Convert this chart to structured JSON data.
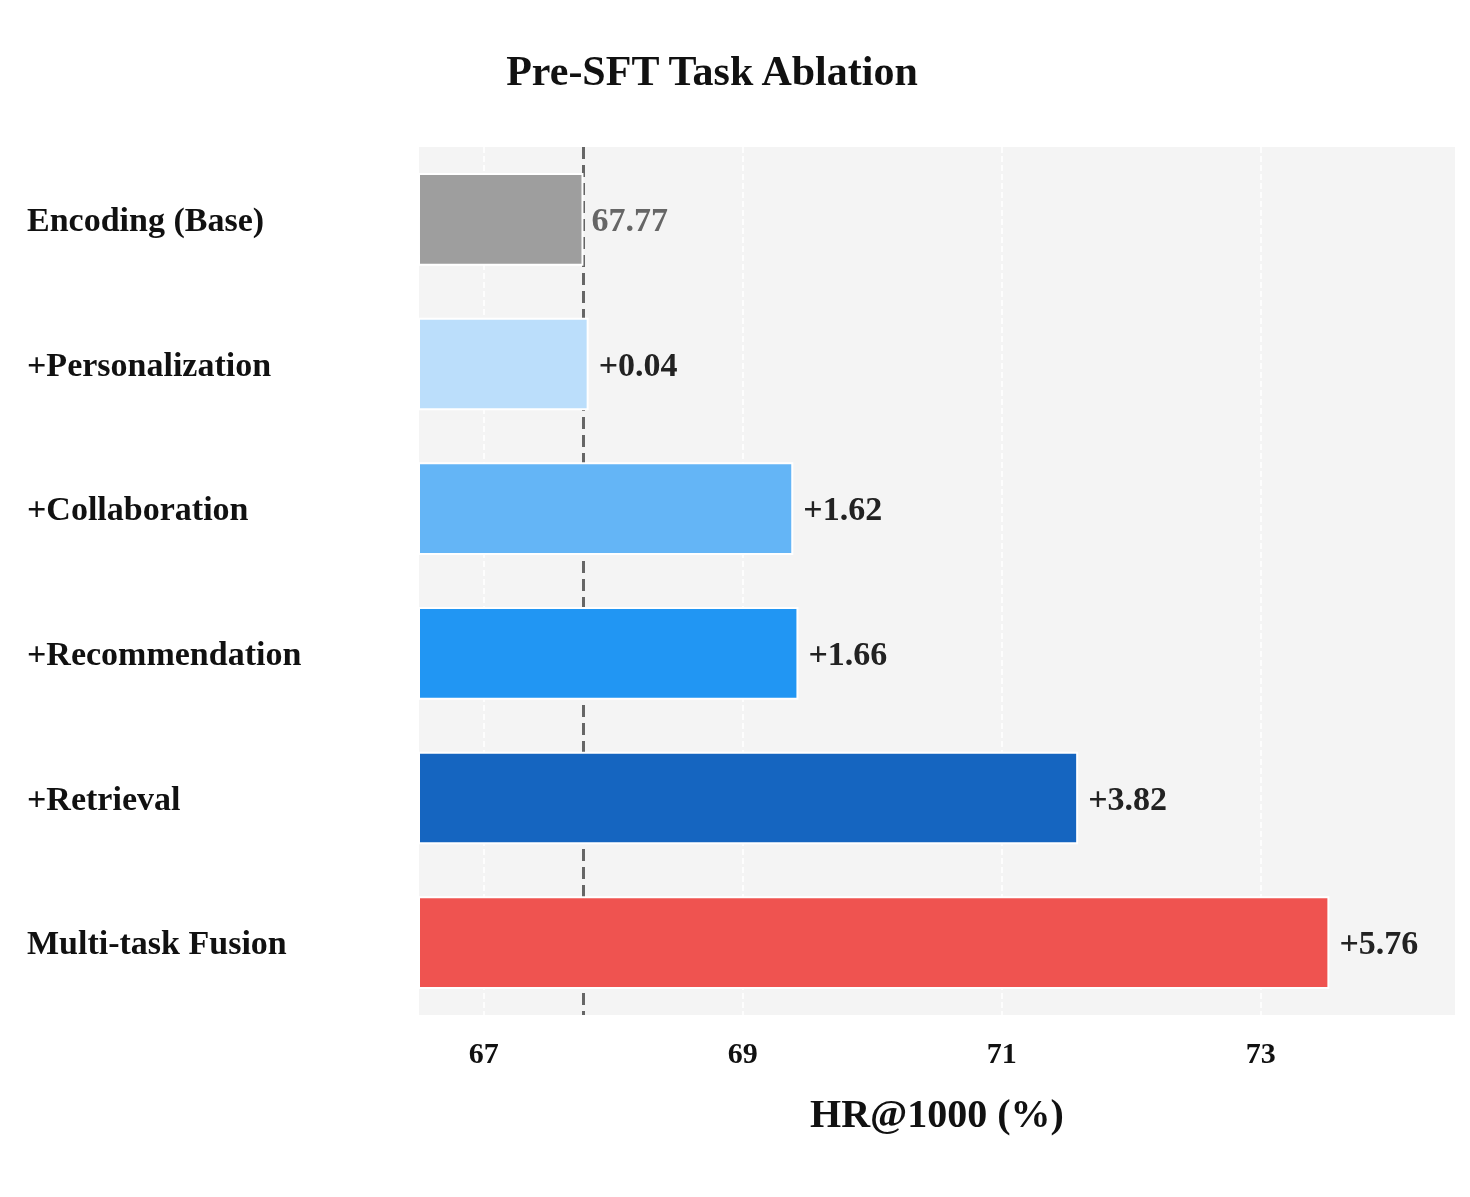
{
  "chart_data": {
    "type": "bar",
    "orientation": "horizontal",
    "title": "Pre-SFT Task Ablation",
    "xlabel": "HR@1000 (%)",
    "categories": [
      "Encoding (Base)",
      "+Personalization",
      "+Collaboration",
      "+Recommendation",
      "+Retrieval",
      "Multi-task Fusion"
    ],
    "values": [
      67.77,
      67.81,
      69.39,
      69.43,
      71.59,
      73.53
    ],
    "value_labels": [
      "67.77",
      null,
      null,
      null,
      null,
      null
    ],
    "annotations": [
      {
        "text": "+0.04",
        "x": 67.81,
        "y": "+Personalization"
      },
      {
        "text": "+1.62",
        "x": 69.39,
        "y": "+Collaboration"
      },
      {
        "text": "+1.66",
        "x": 69.43,
        "y": "+Recommendation"
      },
      {
        "text": "+3.82",
        "x": 71.59,
        "y": "+Retrieval"
      },
      {
        "text": "+5.76",
        "x": 73.53,
        "y": "Multi-task Fusion"
      }
    ],
    "colors": [
      "#9e9e9e",
      "#bbdefb",
      "#64b5f6",
      "#2196f3",
      "#1565c0",
      "#ef5350"
    ],
    "xlim": [
      66.5,
      74.5
    ],
    "xticks": [
      67,
      69,
      71,
      73
    ],
    "grid": "x",
    "ref_lines": [
      {
        "axis": "x",
        "value": 67.77,
        "label": null,
        "color": "#666666",
        "line_style": "dashed"
      }
    ]
  }
}
